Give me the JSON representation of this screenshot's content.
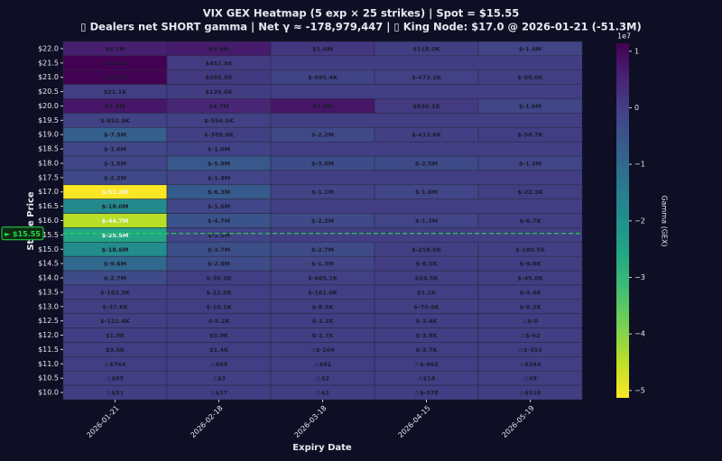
{
  "chart_data": {
    "type": "heatmap",
    "title": "VIX GEX Heatmap (5 exp × 25 strikes) | Spot = $15.55",
    "subtitle": "▯ Dealers net SHORT gamma | Net γ ≈ -178,979,447 | ▯ King Node: $17.0 @ 2026-01-21 (-51.3M)",
    "xlabel": "Expiry Date",
    "ylabel": "Strike Price",
    "categories": [
      "2026-01-21",
      "2026-02-18",
      "2026-03-18",
      "2026-04-15",
      "2026-05-19"
    ],
    "ylim": [
      9.75,
      22.25
    ],
    "yticks": [
      {
        "value": 22,
        "label": "$22.0"
      },
      {
        "value": 21.5,
        "label": "$21.5"
      },
      {
        "value": 21,
        "label": "$21.0"
      },
      {
        "value": 20.5,
        "label": "$20.5"
      },
      {
        "value": 20,
        "label": "$20.0"
      },
      {
        "value": 19.5,
        "label": "$19.5"
      },
      {
        "value": 19,
        "label": "$19.0"
      },
      {
        "value": 18.5,
        "label": "$18.5"
      },
      {
        "value": 18,
        "label": "$18.0"
      },
      {
        "value": 17.5,
        "label": "$17.5"
      },
      {
        "value": 17,
        "label": "$17.0"
      },
      {
        "value": 16.5,
        "label": "$16.5"
      },
      {
        "value": 16,
        "label": "$16.0"
      },
      {
        "value": 15.5,
        "label": "$15.5"
      },
      {
        "value": 15,
        "label": "$15.0"
      },
      {
        "value": 14.5,
        "label": "$14.5"
      },
      {
        "value": 14,
        "label": "$14.0"
      },
      {
        "value": 13.5,
        "label": "$13.5"
      },
      {
        "value": 13,
        "label": "$13.0"
      },
      {
        "value": 12.5,
        "label": "$12.5"
      },
      {
        "value": 12,
        "label": "$12.0"
      },
      {
        "value": 11.5,
        "label": "$11.5"
      },
      {
        "value": 11,
        "label": "$11.0"
      },
      {
        "value": 10.5,
        "label": "$10.5"
      },
      {
        "value": 10,
        "label": "$10.0"
      }
    ],
    "z": [
      [
        6100000,
        6800000,
        1600000,
        118000,
        -1400000
      ],
      [
        11400000,
        452900,
        null,
        null,
        null
      ],
      [
        11200000,
        985500,
        -995400,
        -473100,
        -56000
      ],
      [
        21100,
        135600,
        null,
        null,
        null
      ],
      [
        7600000,
        4700000,
        7900000,
        830100,
        -1600000
      ],
      [
        -852900,
        -554500,
        null,
        null,
        null
      ],
      [
        -7500000,
        -389600,
        -2200000,
        -413600,
        -58700
      ],
      [
        -1600000,
        -1000000,
        null,
        null,
        null
      ],
      [
        -1500000,
        -5900000,
        -3000000,
        -2500000,
        -1300000
      ],
      [
        -2200000,
        -1400000,
        null,
        null,
        null
      ],
      [
        -51300000,
        -6300000,
        -1100000,
        -1600000,
        -22300
      ],
      [
        -18000000,
        -1600000,
        null,
        null,
        null
      ],
      [
        -44700000,
        -4700000,
        -2200000,
        -1300000,
        -6700
      ],
      [
        -25500000,
        -1200000,
        null,
        null,
        null
      ],
      [
        -18600000,
        -3700000,
        -2700000,
        -258000,
        -180500
      ],
      [
        -9600000,
        -2800000,
        -1300000,
        -8500,
        -9000
      ],
      [
        -2700000,
        -30300,
        -465100,
        24500,
        -45600
      ],
      [
        -163300,
        -22600,
        -161000,
        1100,
        -4400
      ],
      [
        -37600,
        -10100,
        -8500,
        -70600,
        -6200
      ],
      [
        -121400,
        -5200,
        -1200,
        -3400,
        -0.2
      ],
      [
        1800,
        5900,
        -2700,
        -3800,
        -62
      ],
      [
        3500,
        1400,
        -204,
        -3700,
        -553
      ],
      [
        764,
        69,
        82,
        -962,
        244
      ],
      [
        65,
        3,
        2,
        14,
        9
      ],
      [
        51,
        37,
        2,
        -578,
        310
      ]
    ],
    "z_labels": [
      [
        "$6.1M",
        "$6.8M",
        "$1.6M",
        "$118.0K",
        "$-1.4M"
      ],
      [
        "$11.4M",
        "$452.9K",
        null,
        null,
        null
      ],
      [
        "$11.2M",
        "$985.5K",
        "$-995.4K",
        "$-473.1K",
        "$-56.0K"
      ],
      [
        "$21.1K",
        "$135.6K",
        null,
        null,
        null
      ],
      [
        "$7.6M",
        "$4.7M",
        "$7.9M",
        "$830.1K",
        "$-1.6M"
      ],
      [
        "$-852.9K",
        "$-554.5K",
        null,
        null,
        null
      ],
      [
        "$-7.5M",
        "$-389.6K",
        "$-2.2M",
        "$-413.6K",
        "$-58.7K"
      ],
      [
        "$-1.6M",
        "$-1.0M",
        null,
        null,
        null
      ],
      [
        "$-1.5M",
        "$-5.9M",
        "$-3.0M",
        "$-2.5M",
        "$-1.3M"
      ],
      [
        "$-2.2M",
        "$-1.4M",
        null,
        null,
        null
      ],
      [
        "$-51.3M",
        "$-6.3M",
        "$-1.1M",
        "$-1.6M",
        "$-22.3K"
      ],
      [
        "$-18.0M",
        "$-1.6M",
        null,
        null,
        null
      ],
      [
        "$-44.7M",
        "$-4.7M",
        "$-2.2M",
        "$-1.3M",
        "$-6.7K"
      ],
      [
        "$-25.5M",
        "$-1.2M",
        null,
        null,
        null
      ],
      [
        "$-18.6M",
        "$-3.7M",
        "$-2.7M",
        "$-258.0K",
        "$-180.5K"
      ],
      [
        "$-9.6M",
        "$-2.8M",
        "$-1.3M",
        "$-8.5K",
        "$-9.0K"
      ],
      [
        "$-2.7M",
        "$-30.3K",
        "$-465.1K",
        "$24.5K",
        "$-45.6K"
      ],
      [
        "$-163.3K",
        "$-22.6K",
        "$-161.0K",
        "$1.1K",
        "$-4.4K"
      ],
      [
        "$-37.6K",
        "$-10.1K",
        "$-8.5K",
        "$-70.6K",
        "$-6.2K"
      ],
      [
        "$-121.4K",
        "$-5.2K",
        "$-1.2K",
        "$-3.4K",
        "⚠$-0"
      ],
      [
        "$1.8K",
        "$5.9K",
        "$-2.7K",
        "$-3.8K",
        "⚠$-62"
      ],
      [
        "$3.5K",
        "$1.4K",
        "⚠$-204",
        "$-3.7K",
        "⚠$-553"
      ],
      [
        "⚠$764",
        "⚠$69",
        "⚠$82",
        "⚠$-962",
        "⚠$244"
      ],
      [
        "⚠$65",
        "⚠$3",
        "⚠$2",
        "⚠$14",
        "⚠$9"
      ],
      [
        "⚠$51",
        "⚠$37",
        "⚠$2",
        "⚠$-578",
        "⚠$310"
      ]
    ],
    "colormap": "viridis_r",
    "colorbar": {
      "label": "Gamma (GEX)",
      "offset_label": "1e7",
      "lim": [
        -51300000,
        11400000
      ],
      "ticks": [
        {
          "value": 10000000,
          "label": "1"
        },
        0,
        {
          "value": -10000000,
          "label": "−1"
        },
        {
          "value": -20000000,
          "label": "−2"
        },
        {
          "value": -30000000,
          "label": "−3"
        },
        {
          "value": -40000000,
          "label": "−4"
        },
        {
          "value": -50000000,
          "label": "−5"
        }
      ]
    },
    "spot": {
      "value": 15.55,
      "label": "► $15.55",
      "color": "#22dd44"
    }
  }
}
